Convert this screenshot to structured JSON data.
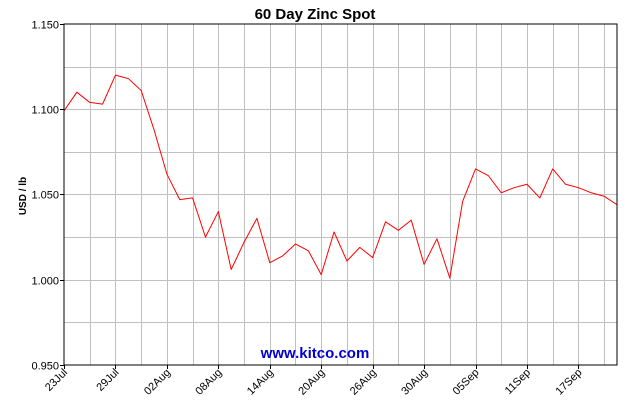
{
  "chart_data": {
    "type": "line",
    "title": "60 Day Zinc Spot",
    "ylabel": "USD / lb",
    "xlabel": "",
    "ylim": [
      0.95,
      1.15
    ],
    "yticks": [
      "1.150",
      "1.100",
      "1.050",
      "1.000",
      "0.950"
    ],
    "ytick_values": [
      1.15,
      1.1,
      1.05,
      1.0,
      0.95
    ],
    "xtick_labels": [
      "23Jul",
      "29Jul",
      "02Aug",
      "08Aug",
      "14Aug",
      "20Aug",
      "26Aug",
      "30Aug",
      "05Sep",
      "11Sep",
      "17Sep"
    ],
    "xtick_index": [
      0,
      4,
      8,
      12,
      16,
      20,
      24,
      28,
      32,
      36,
      40
    ],
    "grid": true,
    "series": [
      {
        "color": "#ff0000",
        "values": [
          1.099,
          1.11,
          1.104,
          1.103,
          1.12,
          1.118,
          1.111,
          1.088,
          1.062,
          1.047,
          1.048,
          1.025,
          1.04,
          1.006,
          1.022,
          1.036,
          1.01,
          1.014,
          1.021,
          1.017,
          1.003,
          1.028,
          1.011,
          1.019,
          1.013,
          1.034,
          1.029,
          1.035,
          1.009,
          1.024,
          1.001,
          1.046,
          1.065,
          1.061,
          1.051,
          1.054,
          1.056,
          1.048,
          1.065,
          1.056,
          1.054,
          1.051,
          1.049,
          1.044
        ]
      }
    ]
  },
  "watermark": {
    "text": "www.kitco.com",
    "color": "#0000cc"
  }
}
